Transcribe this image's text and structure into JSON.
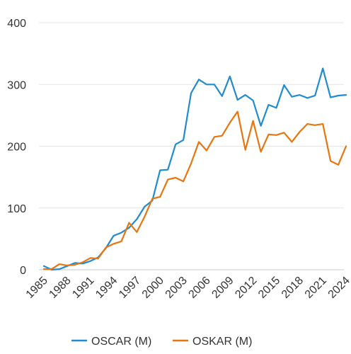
{
  "chart_data": {
    "type": "line",
    "title": "",
    "xlabel": "",
    "ylabel": "",
    "ylim": [
      0,
      400
    ],
    "xlim": [
      1985,
      2024
    ],
    "y_ticks": [
      "0",
      "100",
      "200",
      "300",
      "400"
    ],
    "x_ticks": [
      "1985",
      "1988",
      "1991",
      "1994",
      "1997",
      "2000",
      "2003",
      "2006",
      "2009",
      "2012",
      "2015",
      "2018",
      "2021",
      "2024"
    ],
    "grid": "horizontal",
    "legend_position": "bottom",
    "x": [
      1985,
      1986,
      1987,
      1988,
      1989,
      1990,
      1991,
      1992,
      1993,
      1994,
      1995,
      1996,
      1997,
      1998,
      1999,
      2000,
      2001,
      2002,
      2003,
      2004,
      2005,
      2006,
      2007,
      2008,
      2009,
      2010,
      2011,
      2012,
      2013,
      2014,
      2015,
      2016,
      2017,
      2018,
      2019,
      2020,
      2021,
      2022,
      2023,
      2024
    ],
    "series": [
      {
        "name": "OSCAR (M)",
        "color": "#1f8bd1",
        "values": [
          6,
          0,
          1,
          6,
          11,
          10,
          14,
          20,
          35,
          55,
          60,
          68,
          82,
          102,
          112,
          161,
          162,
          203,
          210,
          286,
          308,
          300,
          300,
          281,
          313,
          275,
          283,
          274,
          233,
          267,
          262,
          299,
          280,
          283,
          278,
          282,
          326,
          279,
          282,
          283
        ]
      },
      {
        "name": "OSKAR (M)",
        "color": "#e8750f",
        "values": [
          1,
          1,
          9,
          7,
          8,
          12,
          19,
          18,
          36,
          42,
          46,
          76,
          61,
          86,
          115,
          118,
          146,
          149,
          143,
          172,
          207,
          193,
          215,
          217,
          238,
          256,
          194,
          241,
          191,
          219,
          218,
          222,
          207,
          223,
          236,
          234,
          236,
          176,
          170,
          200
        ]
      }
    ]
  }
}
